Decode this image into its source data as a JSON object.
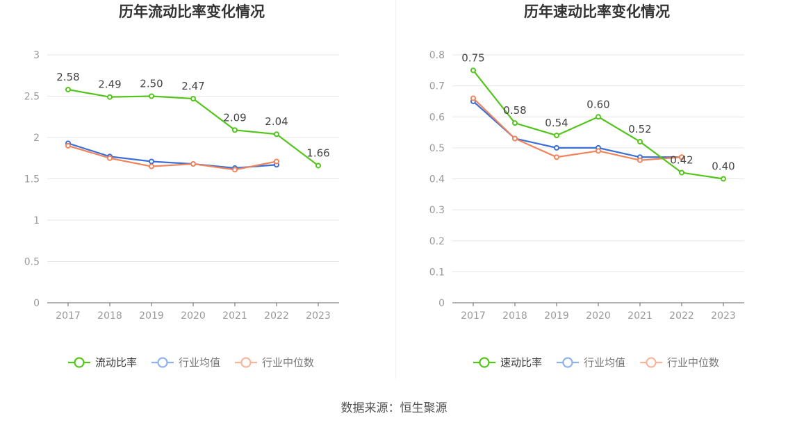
{
  "chart_data": [
    {
      "type": "line",
      "title": "历年流动比率变化情况",
      "categories": [
        "2017",
        "2018",
        "2019",
        "2020",
        "2021",
        "2022",
        "2023"
      ],
      "ylim": [
        0,
        3
      ],
      "yticks": [
        "0",
        "0.5",
        "1",
        "1.5",
        "2",
        "2.5",
        "3"
      ],
      "grid": true,
      "legend_position": "bottom",
      "series": [
        {
          "name": "流动比率",
          "color": "#52c41a",
          "values": [
            2.58,
            2.49,
            2.5,
            2.47,
            2.09,
            2.04,
            1.66
          ],
          "labels": [
            "2.58",
            "2.49",
            "2.50",
            "2.47",
            "2.09",
            "2.04",
            "1.66"
          ]
        },
        {
          "name": "行业均值",
          "color": "#3a6fd8",
          "values": [
            1.93,
            1.77,
            1.71,
            1.68,
            1.63,
            1.67,
            null
          ]
        },
        {
          "name": "行业中位数",
          "color": "#f0845a",
          "values": [
            1.9,
            1.75,
            1.65,
            1.68,
            1.61,
            1.71,
            null
          ]
        }
      ]
    },
    {
      "type": "line",
      "title": "历年速动比率变化情况",
      "categories": [
        "2017",
        "2018",
        "2019",
        "2020",
        "2021",
        "2022",
        "2023"
      ],
      "ylim": [
        0,
        0.8
      ],
      "yticks": [
        "0",
        "0.1",
        "0.2",
        "0.3",
        "0.4",
        "0.5",
        "0.6",
        "0.7",
        "0.8"
      ],
      "grid": true,
      "legend_position": "bottom",
      "series": [
        {
          "name": "速动比率",
          "color": "#52c41a",
          "values": [
            0.75,
            0.58,
            0.54,
            0.6,
            0.52,
            0.42,
            0.4
          ],
          "labels": [
            "0.75",
            "0.58",
            "0.54",
            "0.60",
            "0.52",
            "0.42",
            "0.40"
          ]
        },
        {
          "name": "行业均值",
          "color": "#3a6fd8",
          "values": [
            0.65,
            0.53,
            0.5,
            0.5,
            0.47,
            0.47,
            null
          ]
        },
        {
          "name": "行业中位数",
          "color": "#f0845a",
          "values": [
            0.66,
            0.53,
            0.47,
            0.49,
            0.46,
            0.47,
            null
          ]
        }
      ]
    }
  ],
  "footer": {
    "source": "数据来源：恒生聚源"
  }
}
